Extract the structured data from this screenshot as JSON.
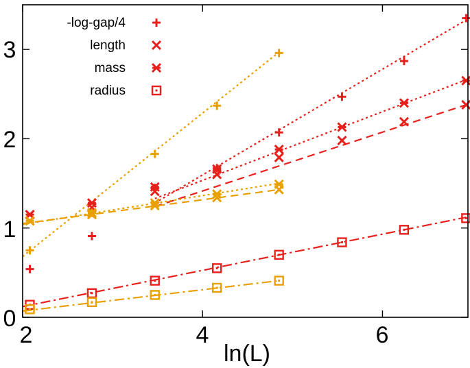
{
  "chart_data": {
    "type": "scatter",
    "title": "",
    "xlabel": "ln(L)",
    "ylabel": "",
    "xlim": [
      2,
      6.95
    ],
    "ylim": [
      0,
      3.5
    ],
    "x_ticks": [
      2,
      4,
      6
    ],
    "y_ticks": [
      0,
      1,
      2,
      3
    ],
    "x_tick_labels": [
      "2",
      "4",
      "6"
    ],
    "y_tick_labels": [
      "0",
      "1",
      "2",
      "3"
    ],
    "grid": false,
    "legend_position": "top-left",
    "legend": [
      {
        "label": "-log-gap/4",
        "marker": "plus"
      },
      {
        "label": "length",
        "marker": "cross"
      },
      {
        "label": "mass",
        "marker": "star"
      },
      {
        "label": "radius",
        "marker": "square"
      }
    ],
    "colors": {
      "red": "#e8201c",
      "orange": "#e8a000"
    },
    "series": [
      {
        "name": "-log-gap/4",
        "color": "#e8201c",
        "marker": "plus",
        "x": [
          2.08,
          2.77,
          3.47,
          4.16,
          4.85,
          5.55,
          6.24,
          6.93
        ],
        "y": [
          0.54,
          0.91,
          1.45,
          1.67,
          2.07,
          2.47,
          2.87,
          3.35
        ]
      },
      {
        "name": "length",
        "color": "#e8201c",
        "marker": "cross",
        "x": [
          2.08,
          2.77,
          3.47,
          4.16,
          4.85,
          5.55,
          6.24,
          6.93
        ],
        "y": [
          1.15,
          1.23,
          1.41,
          1.6,
          1.79,
          1.98,
          2.19,
          2.38
        ]
      },
      {
        "name": "mass",
        "color": "#e8201c",
        "marker": "star",
        "x": [
          2.08,
          2.77,
          3.47,
          4.16,
          4.85,
          5.55,
          6.24,
          6.93
        ],
        "y": [
          1.15,
          1.28,
          1.46,
          1.66,
          1.88,
          2.13,
          2.4,
          2.65
        ]
      },
      {
        "name": "radius",
        "color": "#e8201c",
        "marker": "square",
        "x": [
          2.08,
          2.77,
          3.47,
          4.16,
          4.85,
          5.55,
          6.24,
          6.93
        ],
        "y": [
          0.14,
          0.27,
          0.41,
          0.55,
          0.7,
          0.84,
          0.98,
          1.11
        ]
      },
      {
        "name": "-log-gap/4",
        "color": "#e8a000",
        "marker": "plus",
        "x": [
          2.08,
          2.77,
          3.47,
          4.16,
          4.85
        ],
        "y": [
          0.75,
          1.17,
          1.83,
          2.37,
          2.96
        ]
      },
      {
        "name": "length",
        "color": "#e8a000",
        "marker": "cross",
        "x": [
          2.08,
          2.77,
          3.47,
          4.16,
          4.85
        ],
        "y": [
          1.08,
          1.15,
          1.25,
          1.34,
          1.43
        ]
      },
      {
        "name": "mass",
        "color": "#e8a000",
        "marker": "star",
        "x": [
          2.08,
          2.77,
          3.47,
          4.16,
          4.85
        ],
        "y": [
          1.08,
          1.17,
          1.28,
          1.38,
          1.49
        ]
      },
      {
        "name": "radius",
        "color": "#e8a000",
        "marker": "square",
        "x": [
          2.08,
          2.77,
          3.47,
          4.16,
          4.85
        ],
        "y": [
          0.09,
          0.17,
          0.25,
          0.33,
          0.41
        ]
      }
    ],
    "fit_lines": [
      {
        "name": "red -log-gap/4 fit",
        "color": "#e8201c",
        "dash": "dotted",
        "x": [
          3.47,
          6.93
        ],
        "y": [
          1.28,
          3.33
        ]
      },
      {
        "name": "red length fit",
        "color": "#e8201c",
        "dash": "dashed",
        "x": [
          3.47,
          6.93
        ],
        "y": [
          1.24,
          2.38
        ]
      },
      {
        "name": "red mass fit",
        "color": "#e8201c",
        "dash": "dotted",
        "x": [
          3.47,
          6.93
        ],
        "y": [
          1.33,
          2.66
        ]
      },
      {
        "name": "red radius fit",
        "color": "#e8201c",
        "dash": "dashdot",
        "x": [
          2.0,
          6.93
        ],
        "y": [
          0.12,
          1.12
        ]
      },
      {
        "name": "orange -log-gap/4 fit",
        "color": "#e8a000",
        "dash": "dotted",
        "x": [
          2.0,
          4.85
        ],
        "y": [
          0.68,
          2.97
        ]
      },
      {
        "name": "orange length fit",
        "color": "#e8a000",
        "dash": "dashed",
        "x": [
          2.0,
          4.85
        ],
        "y": [
          1.05,
          1.43
        ]
      },
      {
        "name": "orange mass fit",
        "color": "#e8a000",
        "dash": "dotted",
        "x": [
          2.0,
          4.85
        ],
        "y": [
          1.04,
          1.5
        ]
      },
      {
        "name": "orange radius fit",
        "color": "#e8a000",
        "dash": "dashdot",
        "x": [
          2.0,
          4.85
        ],
        "y": [
          0.07,
          0.41
        ]
      }
    ]
  }
}
